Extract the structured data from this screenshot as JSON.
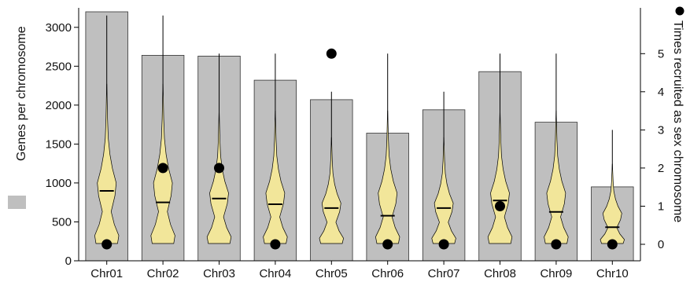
{
  "chart_data": {
    "type": "bar",
    "categories": [
      "Chr01",
      "Chr02",
      "Chr03",
      "Chr04",
      "Chr05",
      "Chr06",
      "Chr07",
      "Chr08",
      "Chr09",
      "Chr10"
    ],
    "series": [
      {
        "name": "Genes per chromosome",
        "axis": "left",
        "values": [
          3200,
          2640,
          2630,
          2320,
          2070,
          1640,
          1940,
          2430,
          1780,
          950
        ],
        "color": "#bfbfbf"
      },
      {
        "name": "Times recruited as sex chromosome",
        "axis": "right",
        "type": "scatter",
        "values": [
          0,
          2,
          2,
          0,
          5,
          0,
          0,
          1,
          0,
          0
        ],
        "color": "#000000"
      }
    ],
    "violins": {
      "description_axis": "right",
      "fill": "#f2e69a",
      "min": [
        0,
        0,
        0,
        0,
        0,
        0,
        0,
        0,
        0,
        0
      ],
      "max": [
        6,
        6,
        5,
        5,
        4,
        5,
        4,
        5,
        5,
        3
      ],
      "median": [
        1.4,
        1.1,
        1.2,
        1.05,
        0.95,
        0.75,
        0.95,
        1.15,
        0.85,
        0.45
      ]
    },
    "ylabel": "Genes per chromosome",
    "y2label": "Times recruited as sex chromosome",
    "ylim": [
      0,
      3000
    ],
    "ylim_display": [
      0,
      3250
    ],
    "y_ticks": [
      "0",
      "500",
      "1000",
      "1500",
      "2000",
      "2500",
      "3000"
    ],
    "y2lim": [
      0,
      6.2
    ],
    "y2_ticks": [
      "0",
      "1",
      "2",
      "3",
      "4",
      "5"
    ],
    "legend": [
      {
        "marker": "square",
        "color": "#bfbfbf",
        "label": "Genes per chromosome",
        "placement": "left"
      },
      {
        "marker": "circle",
        "color": "#000000",
        "label": "Times recruited as sex chromosome",
        "placement": "right"
      }
    ]
  }
}
